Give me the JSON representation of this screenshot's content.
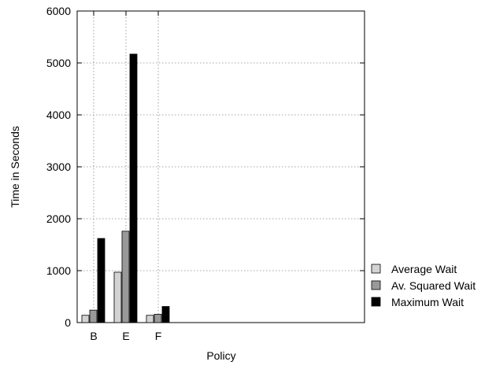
{
  "chart_data": {
    "type": "bar",
    "title": "",
    "xlabel": "Policy",
    "ylabel": "Time in Seconds",
    "categories": [
      "B",
      "E",
      "F"
    ],
    "ylim": [
      0,
      6000
    ],
    "yticks": [
      0,
      1000,
      2000,
      3000,
      4000,
      5000,
      6000
    ],
    "grid": true,
    "legend_position": "bottom-right outside",
    "series": [
      {
        "name": "Average Wait",
        "color": "#d3d3d3",
        "values": [
          140,
          970,
          140
        ]
      },
      {
        "name": "Av. Squared Wait",
        "color": "#999999",
        "values": [
          240,
          1760,
          160
        ]
      },
      {
        "name": "Maximum Wait",
        "color": "#000000",
        "values": [
          1620,
          5170,
          310
        ]
      }
    ]
  }
}
